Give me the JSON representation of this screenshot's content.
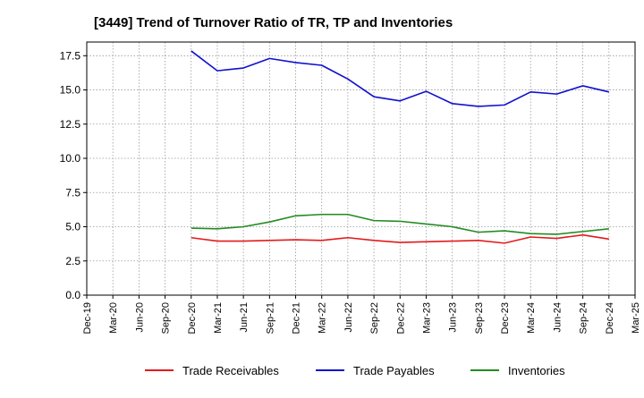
{
  "chart_data": {
    "type": "line",
    "title": "[3449]  Trend of Turnover Ratio of TR, TP and Inventories",
    "xlabel": "",
    "ylabel": "",
    "x_ticks": [
      "Dec-19",
      "Mar-20",
      "Jun-20",
      "Sep-20",
      "Dec-20",
      "Mar-21",
      "Jun-21",
      "Sep-21",
      "Dec-21",
      "Mar-22",
      "Jun-22",
      "Sep-22",
      "Dec-22",
      "Mar-23",
      "Jun-23",
      "Sep-23",
      "Dec-23",
      "Mar-24",
      "Jun-24",
      "Sep-24",
      "Dec-24",
      "Mar-25"
    ],
    "y_ticks": [
      "0.0",
      "2.5",
      "5.0",
      "7.5",
      "10.0",
      "12.5",
      "15.0",
      "17.5"
    ],
    "ylim": [
      0,
      18.5
    ],
    "grid": true,
    "legend_position": "bottom",
    "x": [
      "Dec-20",
      "Mar-21",
      "Jun-21",
      "Sep-21",
      "Dec-21",
      "Mar-22",
      "Jun-22",
      "Sep-22",
      "Dec-22",
      "Mar-23",
      "Jun-23",
      "Sep-23",
      "Dec-23",
      "Mar-24",
      "Jun-24",
      "Sep-24",
      "Dec-24"
    ],
    "series": [
      {
        "name": "Trade Receivables",
        "color": "#e31a1c",
        "values": [
          4.2,
          3.95,
          3.95,
          4.0,
          4.05,
          4.0,
          4.2,
          4.0,
          3.85,
          3.9,
          3.95,
          4.0,
          3.8,
          4.25,
          4.15,
          4.4,
          4.1
        ]
      },
      {
        "name": "Trade Payables",
        "color": "#1010d0",
        "values": [
          17.85,
          16.4,
          16.6,
          17.3,
          17.0,
          16.8,
          15.8,
          14.5,
          14.2,
          14.9,
          14.0,
          13.8,
          13.9,
          14.85,
          14.7,
          15.3,
          14.85
        ]
      },
      {
        "name": "Inventories",
        "color": "#228b22",
        "values": [
          4.9,
          4.85,
          5.0,
          5.35,
          5.8,
          5.9,
          5.9,
          5.45,
          5.4,
          5.2,
          5.0,
          4.6,
          4.7,
          4.5,
          4.45,
          4.65,
          4.85
        ]
      }
    ]
  }
}
